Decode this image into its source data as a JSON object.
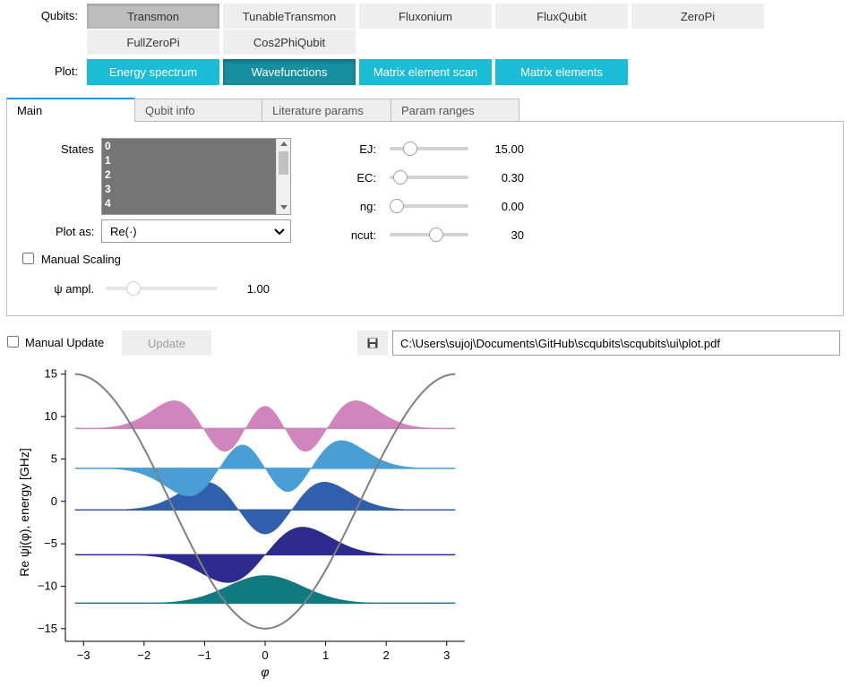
{
  "qubits": {
    "label": "Qubits:",
    "options": [
      "Transmon",
      "TunableTransmon",
      "Fluxonium",
      "FluxQubit",
      "ZeroPi",
      "FullZeroPi",
      "Cos2PhiQubit"
    ],
    "selected": "Transmon"
  },
  "plot": {
    "label": "Plot:",
    "options": [
      "Energy spectrum",
      "Wavefunctions",
      "Matrix element scan",
      "Matrix elements"
    ],
    "selected": "Wavefunctions"
  },
  "tabs": [
    "Main",
    "Qubit info",
    "Literature params",
    "Param ranges"
  ],
  "main": {
    "states_label": "States",
    "states_options": [
      "0",
      "1",
      "2",
      "3",
      "4"
    ],
    "plot_as_label": "Plot as:",
    "plot_as_value": "Re(·)",
    "manual_scaling_label": "Manual Scaling",
    "psi_ampl_label": "ψ ampl.",
    "psi_ampl_value": "1.00",
    "params": [
      {
        "name": "EJ:",
        "value": "15.00",
        "level": 0.17
      },
      {
        "name": "EC:",
        "value": "0.30",
        "level": 0.04
      },
      {
        "name": "ng:",
        "value": "0.00",
        "level": 0.0
      },
      {
        "name": "ncut:",
        "value": "30",
        "level": 0.5
      }
    ],
    "psi_ampl_level": 0.25
  },
  "bottom": {
    "manual_update_label": "Manual Update",
    "update_label": "Update",
    "save_icon": "floppy-disk-icon",
    "file_path": "C:\\Users\\sujoj\\Documents\\GitHub\\scqubits\\scqubits\\ui\\plot.pdf"
  },
  "chart_data": {
    "type": "area",
    "xlabel": "φ",
    "ylabel": "Re ψj(φ),  energy [GHz]",
    "xlim": [
      -3.3,
      3.3
    ],
    "ylim": [
      -16.5,
      15.5
    ],
    "xticks": [
      -3,
      -2,
      -1,
      0,
      1,
      2,
      3
    ],
    "yticks": [
      15,
      10,
      5,
      0,
      -5,
      -10,
      -15
    ],
    "potential": {
      "function": "-EJ*cos(phi)",
      "EJ": 15,
      "color": "#808080"
    },
    "series": [
      {
        "level": -12.0,
        "color": "#117a80",
        "nodes": 0
      },
      {
        "level": -6.3,
        "color": "#2e2b8e",
        "nodes": 1
      },
      {
        "level": -1.0,
        "color": "#2f5fad",
        "nodes": 2
      },
      {
        "level": 3.9,
        "color": "#4a9ed6",
        "nodes": 3
      },
      {
        "level": 8.6,
        "color": "#d085bc",
        "nodes": 4
      }
    ]
  }
}
